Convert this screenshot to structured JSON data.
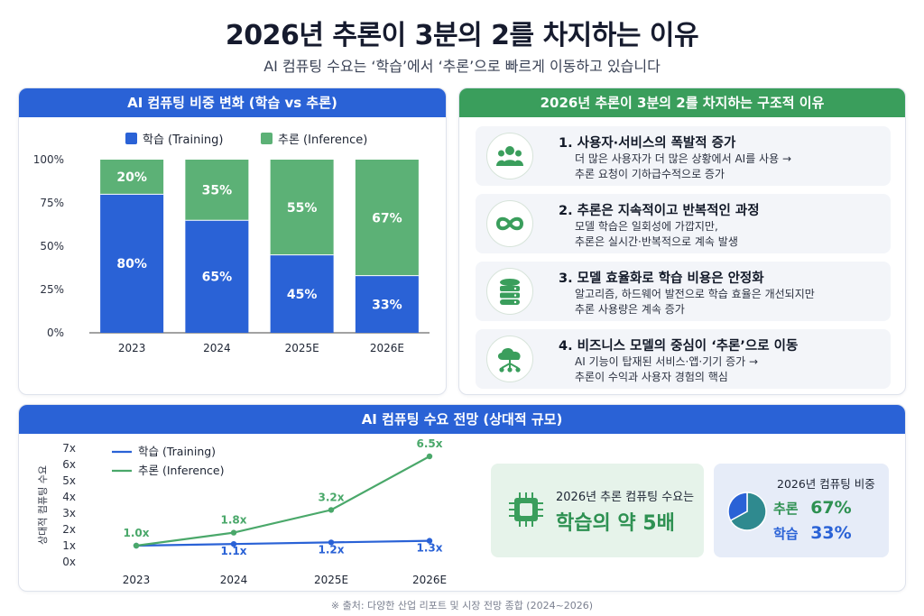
{
  "title": "2026년 추론이 3분의 2를 차지하는 이유",
  "subtitle": "AI 컴퓨팅 수요는 ‘학습’에서 ‘추론’으로 빠르게 이동하고 있습니다",
  "share_chart": {
    "header": "AI 컴퓨팅 비중 변화 (학습 vs 추론)",
    "legend_training": "학습 (Training)",
    "legend_inference": "추론 (Inference)",
    "y_ticks": [
      "100%",
      "75%",
      "50%",
      "25%",
      "0%"
    ],
    "labels_training": [
      "80%",
      "65%",
      "45%",
      "33%"
    ],
    "labels_inference": [
      "20%",
      "35%",
      "55%",
      "67%"
    ]
  },
  "reasons": {
    "header": "2026년 추론이 3분의 2를 차지하는 구조적 이유",
    "items": [
      {
        "title": "1. 사용자·서비스의 폭발적 증가",
        "line1": "더 많은 사용자가 더 많은 상황에서 AI를 사용 →",
        "line2": "추론 요청이 기하급수적으로 증가",
        "icon": "users-icon"
      },
      {
        "title": "2. 추론은 지속적이고 반복적인 과정",
        "line1": "모델 학습은 일회성에 가깝지만,",
        "line2": "추론은 실시간·반복적으로 계속 발생",
        "icon": "infinity-icon"
      },
      {
        "title": "3. 모델 효율화로 학습 비용은 안정화",
        "line1": "알고리즘, 하드웨어 발전으로 학습 효율은 개선되지만",
        "line2": "추론 사용량은 계속 증가",
        "icon": "database-icon"
      },
      {
        "title": "4. 비즈니스 모델의 중심이 ‘추론’으로 이동",
        "line1": "AI 기능이 탑재된 서비스·앱·기기 증가 →",
        "line2": "추론이 수익과 사용자 경험의 핵심",
        "icon": "cloud-network-icon"
      }
    ]
  },
  "outlook": {
    "header": "AI 컴퓨팅 수요 전망 (상대적 규모)",
    "y_axis_label": "상대적 컴퓨팅 수요",
    "y_ticks": [
      "7x",
      "6x",
      "5x",
      "4x",
      "3x",
      "2x",
      "1x",
      "0x"
    ],
    "legend_training": "학습 (Training)",
    "legend_inference": "추론 (Inference)",
    "labels_training": [
      "",
      "1.1x",
      "1.2x",
      "1.3x"
    ],
    "labels_inference": [
      "1.0x",
      "1.8x",
      "3.2x",
      "6.5x"
    ]
  },
  "summary_demand": {
    "caption": "2026년 추론 컴퓨팅 수요는",
    "value": "학습의 약 5배"
  },
  "summary_share": {
    "caption": "2026년 컴퓨팅 비중",
    "inference_label": "추론",
    "inference_value": "67%",
    "training_label": "학습",
    "training_value": "33%"
  },
  "source": "※ 출처: 다양한 산업 리포트 및 시장 전망 종합 (2024~2026)",
  "colors": {
    "training": "#2a62d6",
    "inference": "#5cb176",
    "inference_line": "#4aa86a",
    "header_blue": "#2a62d6",
    "header_green": "#3a9e5c"
  },
  "chart_data": [
    {
      "type": "bar",
      "title": "AI 컴퓨팅 비중 변화 (학습 vs 추론)",
      "stacked": true,
      "categories": [
        "2023",
        "2024",
        "2025E",
        "2026E"
      ],
      "series": [
        {
          "name": "학습 (Training)",
          "values": [
            80,
            65,
            45,
            33
          ]
        },
        {
          "name": "추론 (Inference)",
          "values": [
            20,
            35,
            55,
            67
          ]
        }
      ],
      "ylim": [
        0,
        100
      ],
      "yunit": "%",
      "legend": "top"
    },
    {
      "type": "line",
      "title": "AI 컴퓨팅 수요 전망 (상대적 규모)",
      "ylabel": "상대적 컴퓨팅 수요",
      "categories": [
        "2023",
        "2024",
        "2025E",
        "2026E"
      ],
      "series": [
        {
          "name": "학습 (Training)",
          "values": [
            1.0,
            1.1,
            1.2,
            1.3
          ]
        },
        {
          "name": "추론 (Inference)",
          "values": [
            1.0,
            1.8,
            3.2,
            6.5
          ]
        }
      ],
      "ylim": [
        0,
        7
      ],
      "legend": "top-left"
    },
    {
      "type": "pie",
      "title": "2026년 컴퓨팅 비중",
      "categories": [
        "추론",
        "학습"
      ],
      "values": [
        67,
        33
      ]
    }
  ]
}
